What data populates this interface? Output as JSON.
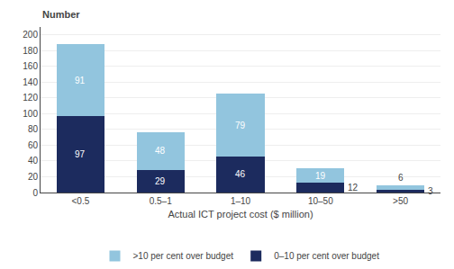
{
  "chart_data": {
    "type": "bar",
    "stacked": true,
    "categories": [
      "<0.5",
      "0.5–1",
      "1–10",
      "10–50",
      ">50"
    ],
    "series": [
      {
        "name": "0–10 per cent over budget",
        "color": "#1c2b5e",
        "values": [
          97,
          29,
          46,
          12,
          3
        ]
      },
      {
        "name": ">10 per cent over budget",
        "color": "#92c5de",
        "values": [
          91,
          48,
          79,
          19,
          6
        ]
      }
    ],
    "xlabel": "Actual ICT project cost ($ million)",
    "ylabel": "Number",
    "ylim": [
      0,
      210
    ],
    "yticks": [
      0,
      20,
      40,
      60,
      80,
      100,
      120,
      140,
      160,
      180,
      200
    ],
    "grid": true,
    "legend": "bottom",
    "data_labels": true
  }
}
